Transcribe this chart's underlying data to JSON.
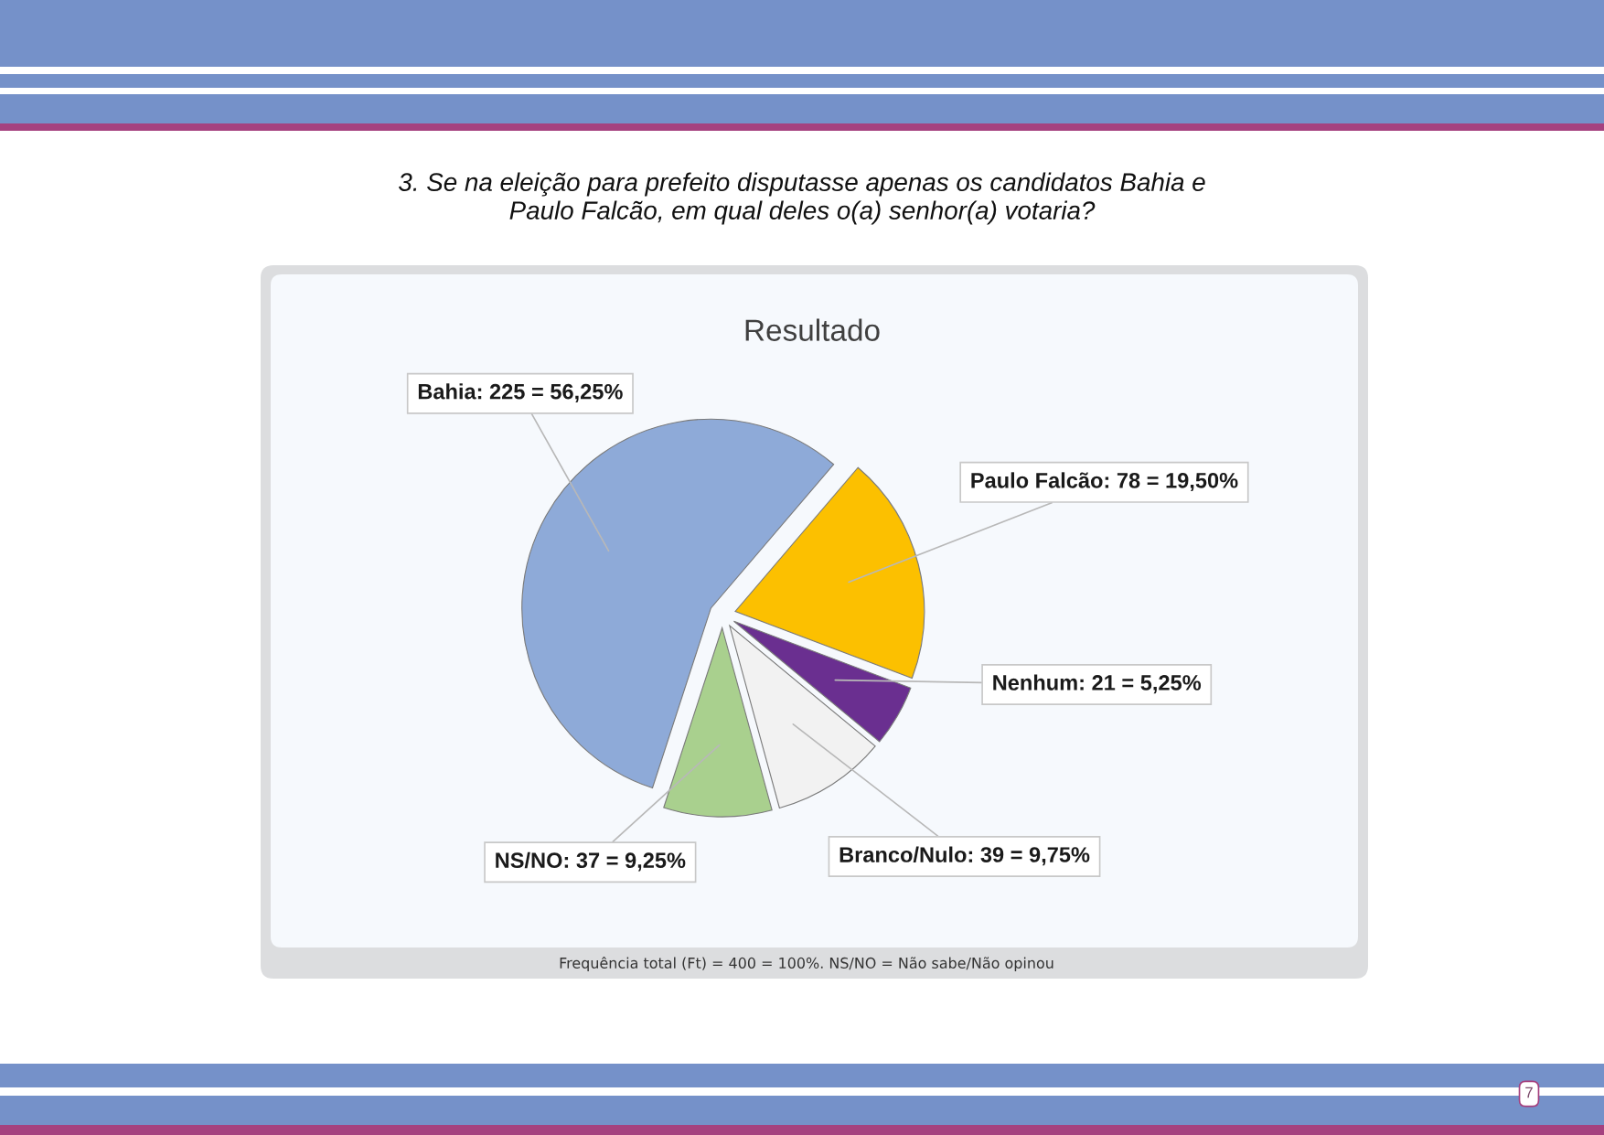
{
  "chart_data": {
    "type": "pie",
    "title": "3. Se na eleição para prefeito disputasse apenas os candidatos Bahia e Paulo Falcão, em qual deles o(a) senhor(a) votaria?",
    "subtitle": "Resultado",
    "categories": [
      "Bahia",
      "Paulo Falcão",
      "Nenhum",
      "Branco/Nulo",
      "NS/NO"
    ],
    "values": [
      225,
      78,
      21,
      39,
      37
    ],
    "colors": [
      "#8eaad8",
      "#fcc000",
      "#6a2f90",
      "#f2f2f2",
      "#a9d08e"
    ],
    "value_labels": [
      "225 = 56,25%",
      "78 = 19,50%",
      "21 = 5,25%",
      "39 = 9,75%",
      "37 = 9,25%"
    ],
    "annotations": [
      "Frequência total (Ft) = 400 = 100%. NS/NO = Não sabe/Não opinou",
      "7"
    ]
  }
}
